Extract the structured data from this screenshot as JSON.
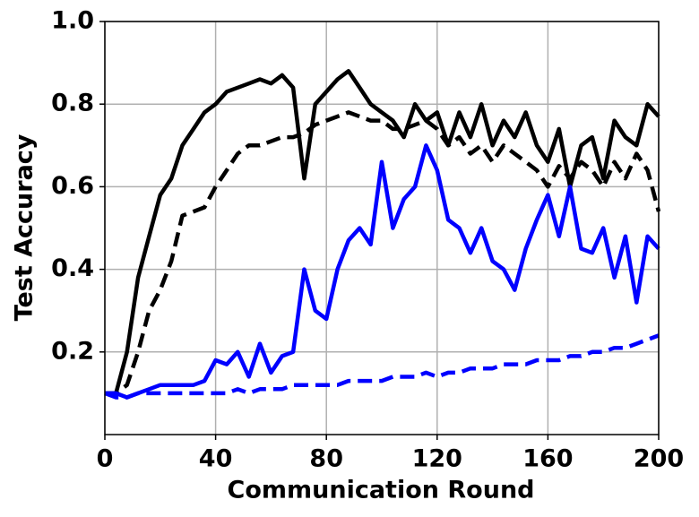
{
  "chart_data": {
    "type": "line",
    "xlabel": "Communication Round",
    "ylabel": "Test Accuracy",
    "x": [
      0,
      4,
      8,
      12,
      16,
      20,
      24,
      28,
      32,
      36,
      40,
      44,
      48,
      52,
      56,
      60,
      64,
      68,
      72,
      76,
      80,
      84,
      88,
      92,
      96,
      100,
      104,
      108,
      112,
      116,
      120,
      124,
      128,
      132,
      136,
      140,
      144,
      148,
      152,
      156,
      160,
      164,
      168,
      172,
      176,
      180,
      184,
      188,
      192,
      196,
      200
    ],
    "series": [
      {
        "color": "#000000",
        "dash": "solid",
        "values": [
          0.1,
          0.1,
          0.2,
          0.38,
          0.48,
          0.58,
          0.62,
          0.7,
          0.74,
          0.78,
          0.8,
          0.83,
          0.84,
          0.85,
          0.86,
          0.85,
          0.87,
          0.84,
          0.62,
          0.8,
          0.83,
          0.86,
          0.88,
          0.84,
          0.8,
          0.78,
          0.76,
          0.72,
          0.8,
          0.76,
          0.78,
          0.7,
          0.78,
          0.72,
          0.8,
          0.7,
          0.76,
          0.72,
          0.78,
          0.7,
          0.66,
          0.74,
          0.6,
          0.7,
          0.72,
          0.62,
          0.76,
          0.72,
          0.7,
          0.8,
          0.77
        ]
      },
      {
        "color": "#000000",
        "dash": "dashed",
        "values": [
          0.1,
          0.1,
          0.12,
          0.2,
          0.3,
          0.35,
          0.42,
          0.53,
          0.54,
          0.55,
          0.6,
          0.64,
          0.68,
          0.7,
          0.7,
          0.71,
          0.72,
          0.72,
          0.73,
          0.75,
          0.76,
          0.77,
          0.78,
          0.77,
          0.76,
          0.76,
          0.74,
          0.74,
          0.75,
          0.76,
          0.74,
          0.7,
          0.72,
          0.68,
          0.7,
          0.66,
          0.7,
          0.68,
          0.66,
          0.64,
          0.6,
          0.65,
          0.62,
          0.66,
          0.64,
          0.6,
          0.66,
          0.62,
          0.68,
          0.64,
          0.54
        ]
      },
      {
        "color": "#0000ff",
        "dash": "solid",
        "values": [
          0.1,
          0.1,
          0.09,
          0.1,
          0.11,
          0.12,
          0.12,
          0.12,
          0.12,
          0.13,
          0.18,
          0.17,
          0.2,
          0.14,
          0.22,
          0.15,
          0.19,
          0.2,
          0.4,
          0.3,
          0.28,
          0.4,
          0.47,
          0.5,
          0.46,
          0.66,
          0.5,
          0.57,
          0.6,
          0.7,
          0.64,
          0.52,
          0.5,
          0.44,
          0.5,
          0.42,
          0.4,
          0.35,
          0.45,
          0.52,
          0.58,
          0.48,
          0.6,
          0.45,
          0.44,
          0.5,
          0.38,
          0.48,
          0.32,
          0.48,
          0.45
        ]
      },
      {
        "color": "#0000ff",
        "dash": "dashed",
        "values": [
          0.1,
          0.09,
          0.09,
          0.1,
          0.1,
          0.1,
          0.1,
          0.1,
          0.1,
          0.1,
          0.1,
          0.1,
          0.11,
          0.1,
          0.11,
          0.11,
          0.11,
          0.12,
          0.12,
          0.12,
          0.12,
          0.12,
          0.13,
          0.13,
          0.13,
          0.13,
          0.14,
          0.14,
          0.14,
          0.15,
          0.14,
          0.15,
          0.15,
          0.16,
          0.16,
          0.16,
          0.17,
          0.17,
          0.17,
          0.18,
          0.18,
          0.18,
          0.19,
          0.19,
          0.2,
          0.2,
          0.21,
          0.21,
          0.22,
          0.23,
          0.24
        ]
      }
    ],
    "xlim": [
      0,
      200
    ],
    "xticks": [
      0,
      40,
      80,
      120,
      160,
      200
    ],
    "ylim": [
      0,
      1
    ],
    "yticks": [
      0.2,
      0.4,
      0.6,
      0.8,
      {
        "value": 1,
        "label": "1.0"
      }
    ],
    "grid": true
  }
}
